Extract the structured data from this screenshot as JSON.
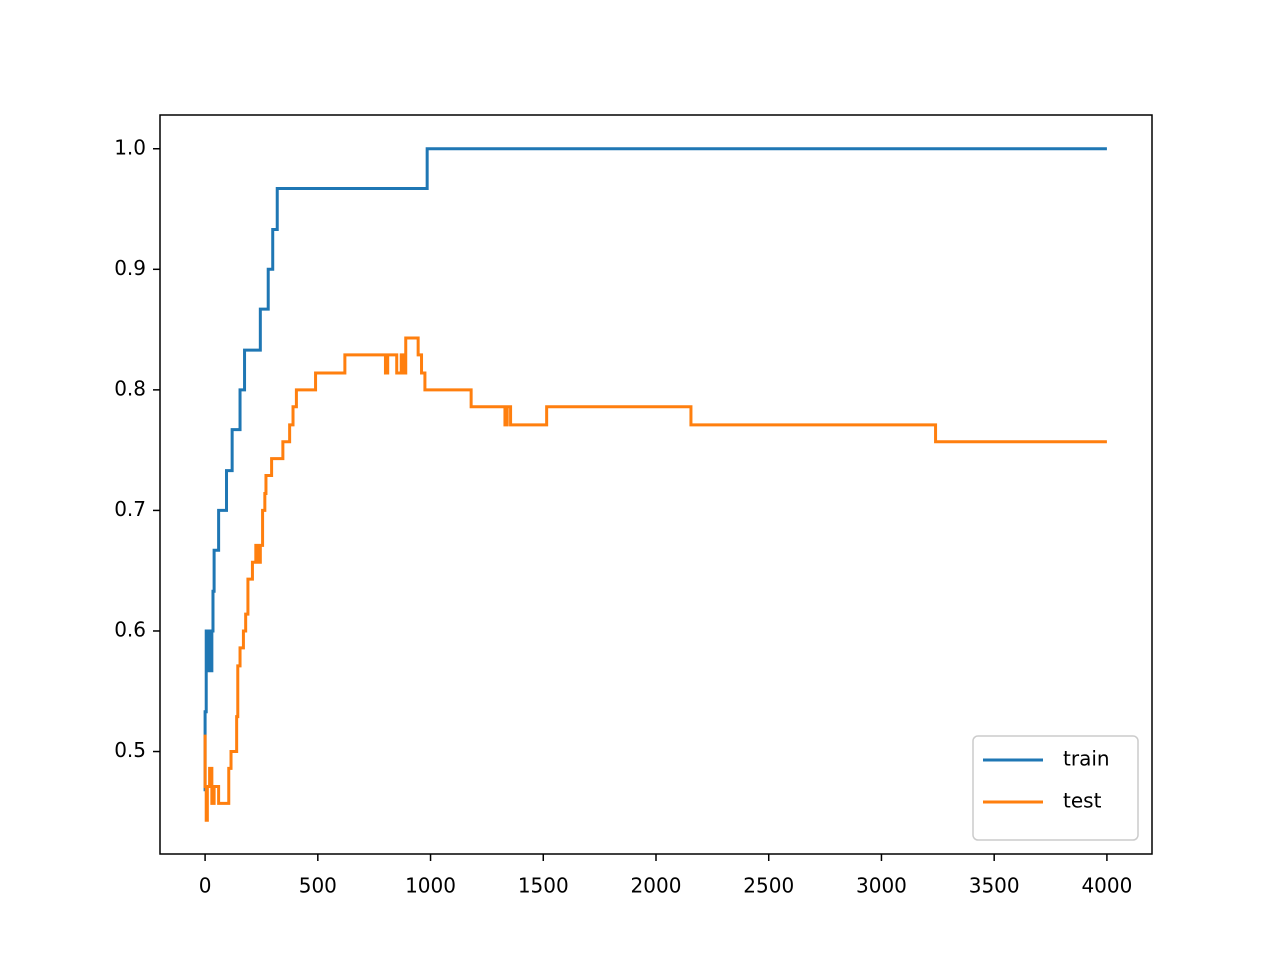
{
  "chart_data": {
    "type": "line",
    "xlim": [
      -200,
      4200
    ],
    "ylim": [
      0.415,
      1.028
    ],
    "xticks": [
      0,
      500,
      1000,
      1500,
      2000,
      2500,
      3000,
      3500,
      4000
    ],
    "yticks": [
      0.5,
      0.6,
      0.7,
      0.8,
      0.9,
      {
        "value": 1,
        "label": "1.0"
      }
    ],
    "grid": false,
    "legend": "lower right",
    "series": [
      {
        "name": "train",
        "color": "#1f77b4",
        "x": [
          0,
          0,
          5,
          5,
          15,
          15,
          20,
          20,
          25,
          25,
          30,
          30,
          35,
          35,
          40,
          40,
          60,
          60,
          95,
          95,
          120,
          120,
          155,
          155,
          175,
          175,
          245,
          245,
          280,
          280,
          300,
          300,
          320,
          320,
          985,
          985,
          4000
        ],
        "y": [
          0.467,
          0.533,
          0.533,
          0.6,
          0.6,
          0.567,
          0.567,
          0.6,
          0.6,
          0.567,
          0.567,
          0.6,
          0.6,
          0.633,
          0.633,
          0.667,
          0.667,
          0.7,
          0.7,
          0.733,
          0.733,
          0.767,
          0.767,
          0.8,
          0.8,
          0.833,
          0.833,
          0.867,
          0.867,
          0.9,
          0.9,
          0.933,
          0.933,
          0.967,
          0.967,
          1.0,
          1.0
        ]
      },
      {
        "name": "test",
        "color": "#ff7f0e",
        "x": [
          0,
          0,
          5,
          5,
          10,
          10,
          20,
          20,
          30,
          30,
          40,
          40,
          60,
          60,
          105,
          105,
          115,
          115,
          140,
          140,
          145,
          145,
          155,
          155,
          170,
          170,
          180,
          180,
          190,
          190,
          210,
          210,
          225,
          225,
          235,
          235,
          245,
          245,
          255,
          255,
          265,
          265,
          270,
          270,
          295,
          295,
          345,
          345,
          375,
          375,
          390,
          390,
          405,
          405,
          490,
          490,
          620,
          620,
          800,
          800,
          810,
          810,
          850,
          850,
          870,
          870,
          880,
          880,
          890,
          890,
          945,
          945,
          960,
          960,
          975,
          975,
          1180,
          1180,
          1330,
          1330,
          1340,
          1340,
          1355,
          1355,
          1515,
          1515,
          2155,
          2155,
          3240,
          3240,
          4000
        ],
        "y": [
          0.514,
          0.471,
          0.471,
          0.443,
          0.443,
          0.471,
          0.471,
          0.486,
          0.486,
          0.457,
          0.457,
          0.471,
          0.471,
          0.457,
          0.457,
          0.486,
          0.486,
          0.5,
          0.5,
          0.529,
          0.529,
          0.571,
          0.571,
          0.586,
          0.586,
          0.6,
          0.6,
          0.614,
          0.614,
          0.643,
          0.643,
          0.657,
          0.657,
          0.671,
          0.671,
          0.657,
          0.657,
          0.671,
          0.671,
          0.7,
          0.7,
          0.714,
          0.714,
          0.729,
          0.729,
          0.743,
          0.743,
          0.757,
          0.757,
          0.771,
          0.771,
          0.786,
          0.786,
          0.8,
          0.8,
          0.814,
          0.814,
          0.829,
          0.829,
          0.814,
          0.814,
          0.829,
          0.829,
          0.814,
          0.814,
          0.829,
          0.829,
          0.814,
          0.814,
          0.843,
          0.843,
          0.829,
          0.829,
          0.814,
          0.814,
          0.8,
          0.8,
          0.786,
          0.786,
          0.771,
          0.771,
          0.786,
          0.786,
          0.771,
          0.771,
          0.786,
          0.786,
          0.771,
          0.771,
          0.757,
          0.757
        ]
      }
    ]
  }
}
